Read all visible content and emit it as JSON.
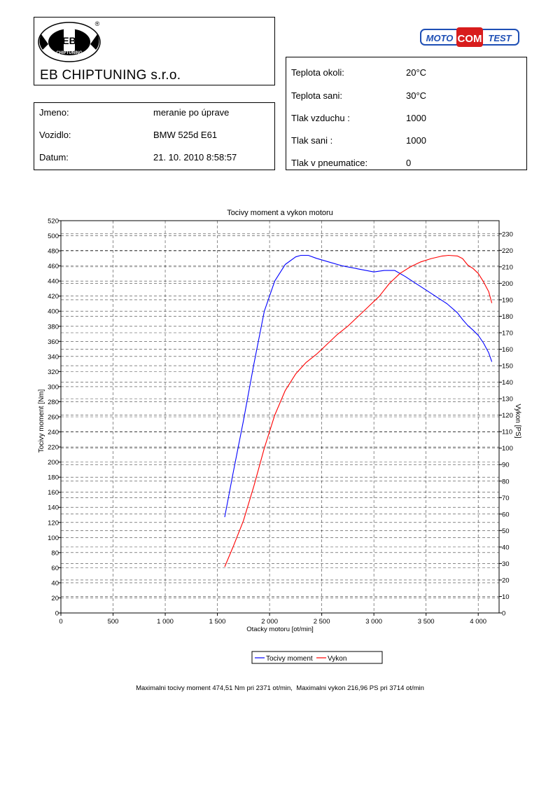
{
  "header": {
    "company": "EB CHIPTUNING s.r.o.",
    "logo_text": {
      "center": "EB",
      "bottom": "CHIPTUNING",
      "arc_top": "DOPRAJTE SI RADOSŤ Z JAZDY",
      "arc_bottom": "VIAC KONÍ PRE VAŠE AUTO",
      "registered": "®"
    },
    "moto_logo": {
      "left": "MOTO",
      "mid": "COM",
      "right": "TEST"
    }
  },
  "info": [
    {
      "label": "Jmeno:",
      "value": "meranie po úprave"
    },
    {
      "label": "Vozidlo:",
      "value": "BMW 525d E61"
    },
    {
      "label": "Datum:",
      "value": "21. 10. 2010 8:58:57"
    }
  ],
  "conditions": [
    {
      "label": "Teplota okoli:",
      "value": "20°C"
    },
    {
      "label": "Teplota sani:",
      "value": "30°C"
    },
    {
      "label": "Tlak vzduchu :",
      "value": "1000"
    },
    {
      "label": "Tlak sani :",
      "value": "1000"
    },
    {
      "label": "Tlak v pneumatice:",
      "value": "0"
    }
  ],
  "summary": "Maximalni tocivy moment 474,51 Nm pri 2371 ot/min,  Maximalni vykon 216,96 PS pri 3714 ot/min",
  "colors": {
    "torque": "#0000ff",
    "power": "#ff0000",
    "moto_blue": "#1e4fb5",
    "moto_red": "#d81c1c"
  },
  "chart_data": {
    "type": "line",
    "title": "Tocivy moment a vykon motoru",
    "xlabel": "Otacky motoru [ot/min]",
    "ylabel": "Tocivy moment [Nm]",
    "y2label": "Vykon [PS]",
    "xlim": [
      0,
      4200
    ],
    "ylim": [
      0,
      520
    ],
    "y2lim": [
      0,
      238
    ],
    "x_ticks": [
      0,
      500,
      1000,
      1500,
      2000,
      2500,
      3000,
      3500,
      4000
    ],
    "x_tick_labels": [
      "0",
      "500",
      "1 000",
      "1 500",
      "2 000",
      "2 500",
      "3 000",
      "3 500",
      "4 000"
    ],
    "y_ticks": [
      0,
      20,
      40,
      60,
      80,
      100,
      120,
      140,
      160,
      180,
      200,
      220,
      240,
      260,
      280,
      300,
      320,
      340,
      360,
      380,
      400,
      420,
      440,
      460,
      480,
      500,
      520
    ],
    "y2_ticks": [
      0,
      10,
      20,
      30,
      40,
      50,
      60,
      70,
      80,
      90,
      100,
      110,
      120,
      130,
      140,
      150,
      160,
      170,
      180,
      190,
      200,
      210,
      220,
      230
    ],
    "grid": true,
    "legend_position": "bottom-center",
    "series": [
      {
        "name": "Tocivy moment",
        "axis": "left",
        "x": [
          1570,
          1650,
          1750,
          1850,
          1950,
          2050,
          2150,
          2250,
          2300,
          2371,
          2450,
          2550,
          2700,
          2850,
          3000,
          3100,
          3200,
          3300,
          3400,
          3500,
          3600,
          3700,
          3800,
          3850,
          3900,
          3950,
          4000,
          4050,
          4100,
          4130
        ],
        "y": [
          127,
          185,
          255,
          330,
          400,
          440,
          462,
          472,
          474,
          474,
          470,
          466,
          460,
          456,
          452,
          454,
          454,
          446,
          437,
          428,
          419,
          410,
          398,
          389,
          381,
          375,
          368,
          358,
          345,
          333
        ]
      },
      {
        "name": "Vykon",
        "axis": "right",
        "x": [
          1570,
          1650,
          1750,
          1850,
          1950,
          2050,
          2150,
          2250,
          2350,
          2450,
          2550,
          2650,
          2750,
          2850,
          2950,
          3050,
          3150,
          3250,
          3350,
          3450,
          3550,
          3650,
          3714,
          3800,
          3850,
          3900,
          3950,
          4000,
          4050,
          4100,
          4130
        ],
        "y": [
          28,
          40,
          56,
          77,
          100,
          120,
          135,
          145,
          152,
          157,
          163,
          169,
          174,
          180,
          186,
          192,
          200,
          206,
          210,
          213,
          215,
          216.5,
          216.96,
          216.6,
          215,
          211,
          209,
          206,
          201,
          195,
          188
        ]
      }
    ]
  }
}
